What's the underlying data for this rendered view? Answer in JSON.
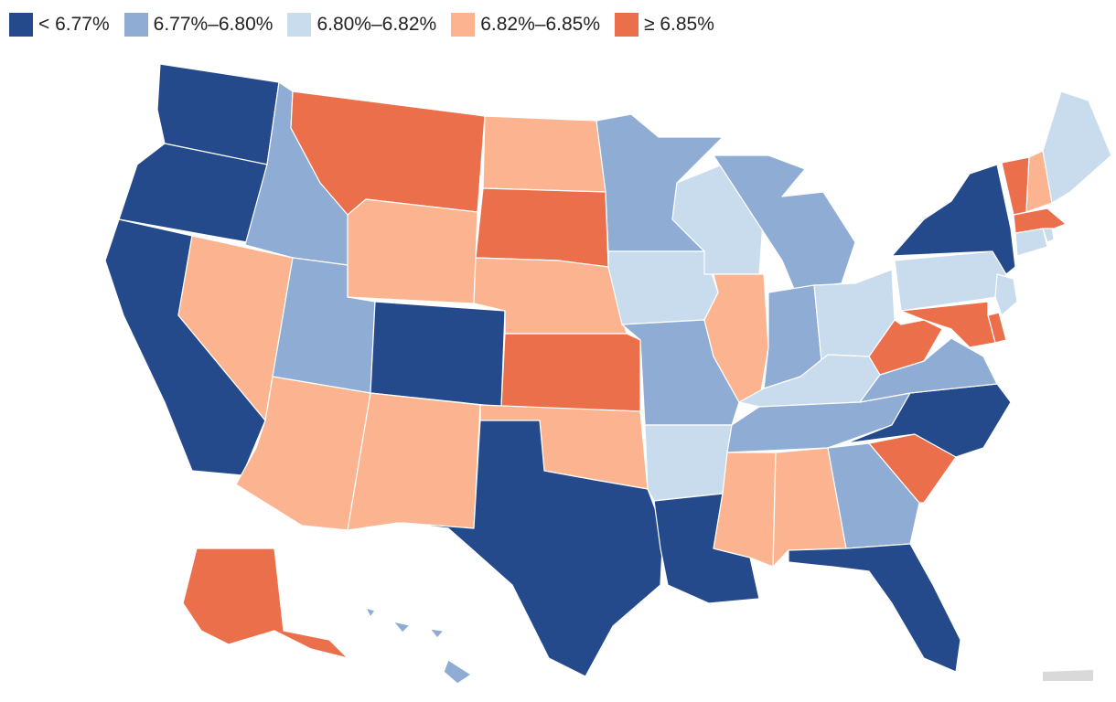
{
  "legend": [
    {
      "label": "< 6.77%",
      "color": "#244a8b"
    },
    {
      "label": "6.77%–6.80%",
      "color": "#8eacd4"
    },
    {
      "label": "6.80%–6.82%",
      "color": "#c8dcee"
    },
    {
      "label": "6.82%–6.85%",
      "color": "#fbb48f"
    },
    {
      "label": "≥ 6.85%",
      "color": "#ec6f4b"
    }
  ],
  "no_data_color": "#d9d9d9",
  "states": {
    "WA": 0,
    "OR": 0,
    "CA": 0,
    "CO": 0,
    "TX": 0,
    "LA": 0,
    "FL": 0,
    "NC": 0,
    "NY": 0,
    "ID": 1,
    "UT": 1,
    "MN": 1,
    "MI": 1,
    "IN": 1,
    "MO": 1,
    "VA": 1,
    "TN": 1,
    "GA": 1,
    "HI": 1,
    "WI": 2,
    "IA": 2,
    "OH": 2,
    "PA": 2,
    "KY": 2,
    "AR": 2,
    "ME": 2,
    "CT": 2,
    "NJ": 2,
    "RI": 2,
    "NV": 3,
    "AZ": 3,
    "NM": 3,
    "WY": 3,
    "ND": 3,
    "NE": 3,
    "OK": 3,
    "IL": 3,
    "MS": 3,
    "AL": 3,
    "NH": 3,
    "MT": 4,
    "SD": 4,
    "KS": 4,
    "WV": 4,
    "SC": 4,
    "MD": 4,
    "DE": 4,
    "MA": 4,
    "VT": 4,
    "AK": 4
  }
}
